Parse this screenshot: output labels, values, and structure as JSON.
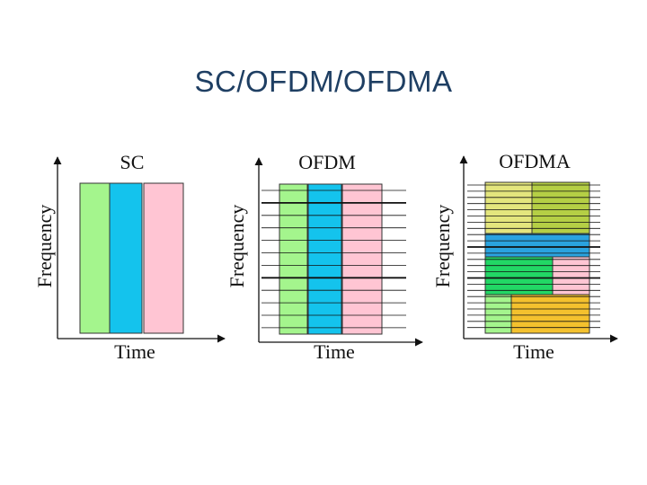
{
  "slide": {
    "title": "SC/OFDM/OFDMA"
  },
  "diagrams": {
    "sc": {
      "title": "SC",
      "xlabel": "Time",
      "ylabel": "Frequency"
    },
    "ofdm": {
      "title": "OFDM",
      "xlabel": "Time",
      "ylabel": "Frequency"
    },
    "ofdma": {
      "title": "OFDMA",
      "xlabel": "Time",
      "ylabel": "Frequency"
    }
  },
  "colors": {
    "green": "#a4f58d",
    "cyan": "#14c3ed",
    "pink": "#ffc5d3",
    "yellow": "#e4e67d",
    "olive": "#b5cf45",
    "blue": "#2aa3df",
    "darkgreen": "#22d765",
    "orange": "#f4c12e"
  }
}
